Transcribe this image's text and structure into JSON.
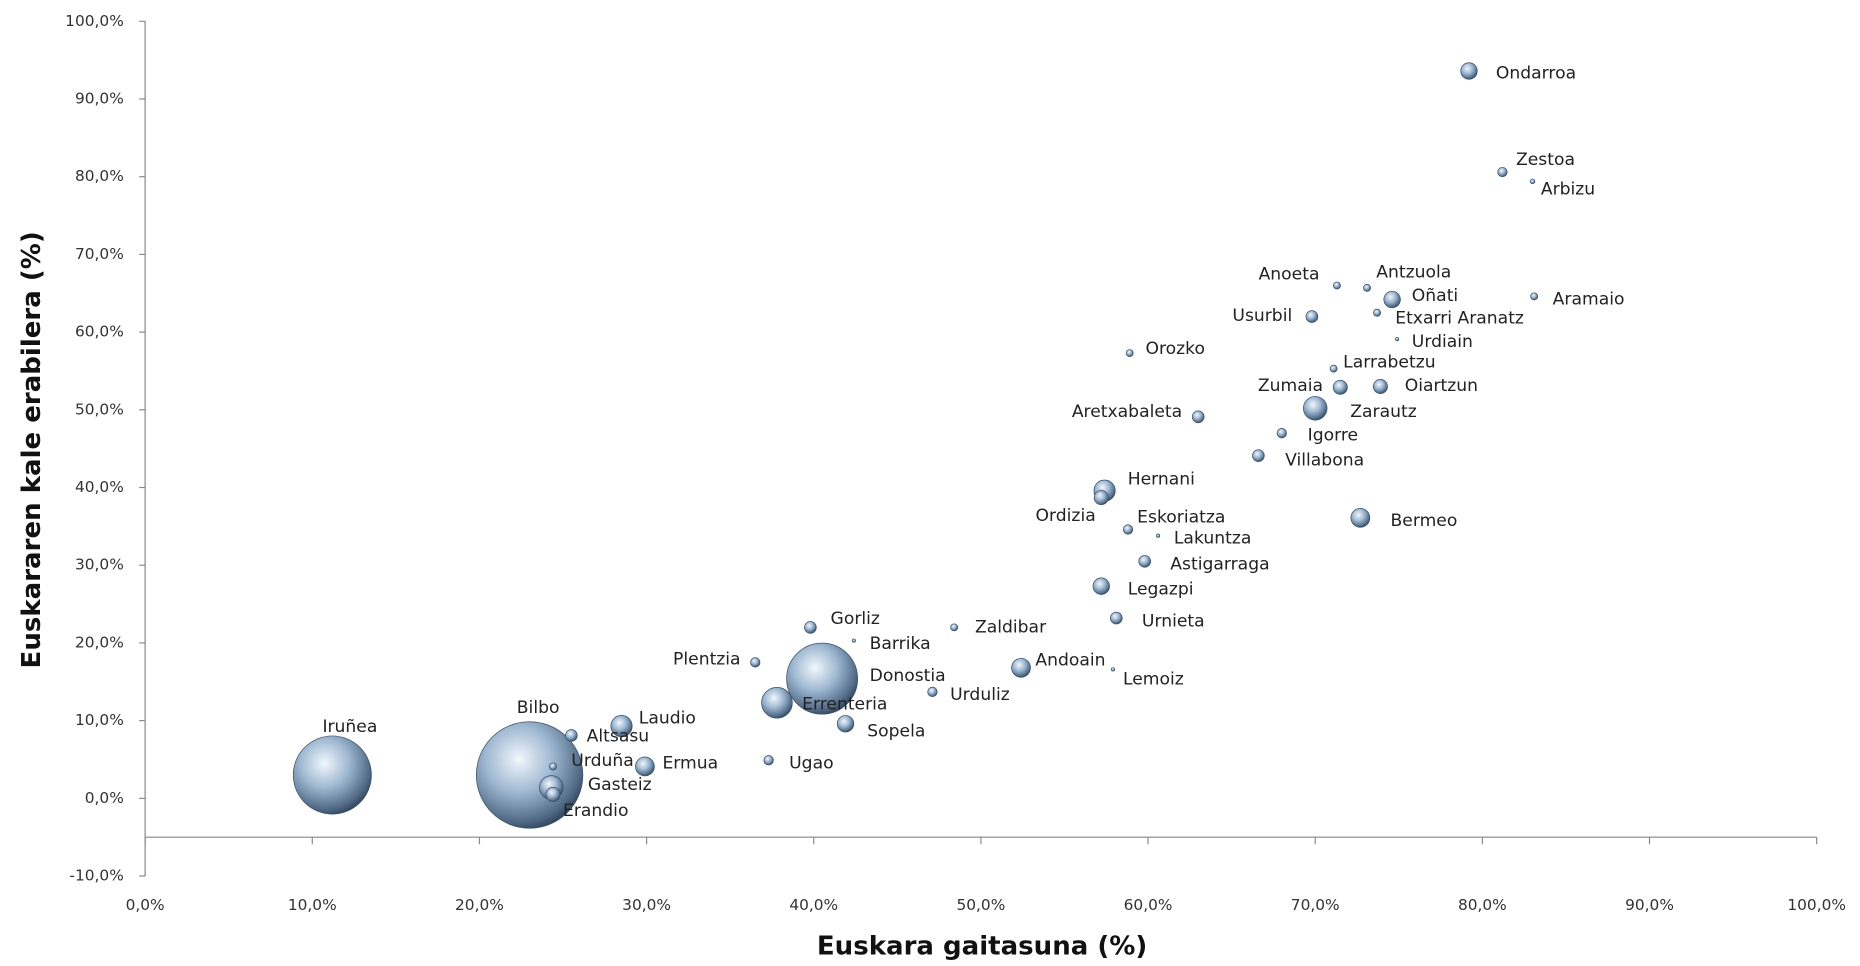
{
  "chart_data": {
    "type": "bubble",
    "x_label": "Euskara gaitasuna  (%)",
    "y_label": "Euskararen kale erabilera (%)",
    "labels": [
      "Bilbo",
      "Iruñea",
      "Donostia",
      "Errenteria",
      "Ondarroa",
      "Zestoa",
      "Arbizu",
      "Anoeta",
      "Antzuola",
      "Oñati",
      "Aramaio",
      "Usurbil",
      "Etxarri Aranatz",
      "Urdiain",
      "Orozko",
      "Larrabetzu",
      "Zumaia",
      "Oiartzun",
      "Aretxabaleta",
      "Zarautz",
      "Igorre",
      "Villabona",
      "Hernani",
      "Ordizia",
      "Bermeo",
      "Eskoriatza",
      "Lakuntza",
      "Astigarraga",
      "Legazpi",
      "Urnieta",
      "Zaldibar",
      "Gorliz",
      "Barrika",
      "Plentzia",
      "Andoain",
      "Lemoiz",
      "Urduliz",
      "Sopela",
      "Laudio",
      "Altsasu",
      "Urduña",
      "Ermua",
      "Ugao",
      "Gasteiz",
      "Erandio"
    ],
    "x": [
      23.0,
      11.2,
      40.5,
      37.8,
      79.2,
      81.2,
      83.0,
      71.3,
      73.1,
      74.6,
      83.1,
      69.8,
      73.7,
      74.9,
      58.9,
      71.1,
      71.5,
      73.9,
      63.0,
      70.0,
      68.0,
      66.6,
      57.4,
      57.2,
      72.7,
      58.8,
      60.6,
      59.8,
      57.2,
      58.1,
      48.4,
      39.8,
      42.4,
      36.5,
      52.4,
      57.9,
      47.1,
      41.9,
      28.5,
      25.5,
      24.4,
      29.9,
      37.3,
      24.3,
      24.4
    ],
    "y": [
      3.0,
      3.0,
      15.4,
      12.3,
      93.6,
      80.6,
      79.4,
      66.0,
      65.7,
      64.2,
      64.6,
      62.0,
      62.5,
      59.1,
      57.3,
      55.3,
      52.9,
      53.0,
      49.1,
      50.2,
      47.0,
      44.1,
      39.6,
      38.7,
      36.1,
      34.6,
      33.8,
      30.5,
      27.3,
      23.2,
      22.0,
      22.0,
      20.3,
      17.5,
      16.8,
      16.6,
      13.7,
      9.6,
      9.3,
      8.1,
      4.1,
      4.1,
      4.9,
      1.4,
      0.5
    ],
    "sizes": [
      2025,
      1089,
      900,
      169,
      49,
      16,
      4,
      9,
      9,
      49,
      9,
      25,
      9,
      2,
      9,
      9,
      36,
      36,
      25,
      100,
      16,
      25,
      81,
      36,
      64,
      16,
      2,
      25,
      49,
      25,
      9,
      25,
      2,
      16,
      64,
      2,
      16,
      49,
      81,
      25,
      9,
      64,
      16,
      100,
      36
    ],
    "xlim": [
      0,
      100
    ],
    "ylim": [
      -10,
      100
    ],
    "xticks": [
      {
        "value": 0,
        "label": "0,0%"
      },
      {
        "value": 10,
        "label": "10,0%"
      },
      {
        "value": 20,
        "label": "20,0%"
      },
      {
        "value": 30,
        "label": "30,0%"
      },
      {
        "value": 40,
        "label": "40,0%"
      },
      {
        "value": 50,
        "label": "50,0%"
      },
      {
        "value": 60,
        "label": "60,0%"
      },
      {
        "value": 70,
        "label": "70,0%"
      },
      {
        "value": 80,
        "label": "80,0%"
      },
      {
        "value": 90,
        "label": "90,0%"
      },
      {
        "value": 100,
        "label": "100,0%"
      }
    ],
    "yticks": [
      {
        "value": -10,
        "label": "-10,0%"
      },
      {
        "value": 0,
        "label": "0,0%"
      },
      {
        "value": 10,
        "label": "10,0%"
      },
      {
        "value": 20,
        "label": "20,0%"
      },
      {
        "value": 30,
        "label": "30,0%"
      },
      {
        "value": 40,
        "label": "40,0%"
      },
      {
        "value": 50,
        "label": "50,0%"
      },
      {
        "value": 60,
        "label": "60,0%"
      },
      {
        "value": 70,
        "label": "70,0%"
      },
      {
        "value": 80,
        "label": "80,0%"
      },
      {
        "value": 90,
        "label": "90,0%"
      },
      {
        "value": 100,
        "label": "100,0%"
      }
    ],
    "xaxis_at": -5,
    "grid": false
  }
}
